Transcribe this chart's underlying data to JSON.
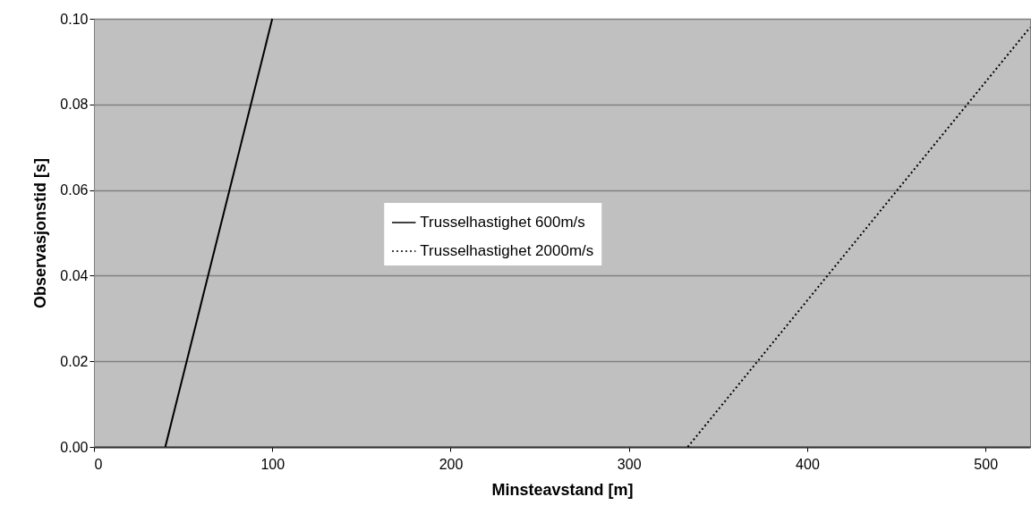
{
  "chart_data": {
    "type": "line",
    "xlabel": "Minsteavstand [m]",
    "ylabel": "Observasjonstid [s]",
    "xlim": [
      0,
      525
    ],
    "xticks": [
      0,
      100,
      200,
      300,
      400,
      500
    ],
    "ylim": [
      0,
      0.1
    ],
    "yticks": [
      {
        "value": 0,
        "label": "0.00"
      },
      {
        "value": 0.02,
        "label": "0.02"
      },
      {
        "value": 0.04,
        "label": "0.04"
      },
      {
        "value": 0.06,
        "label": "0.06"
      },
      {
        "value": 0.08,
        "label": "0.08"
      },
      {
        "value": 0.1,
        "label": "0.10"
      }
    ],
    "grid": "y",
    "legend": "center",
    "marker": "none",
    "series": [
      {
        "name": "Trusselhastighet 600m/s",
        "color": "#000000",
        "line_style": "solid",
        "x": [
          40,
          100
        ],
        "values": [
          0,
          0.1
        ]
      },
      {
        "name": "Trusselhastighet 2000m/s",
        "color": "#000000",
        "line_style": "dotted",
        "x": [
          333,
          525
        ],
        "values": [
          0,
          0.098
        ]
      }
    ]
  }
}
